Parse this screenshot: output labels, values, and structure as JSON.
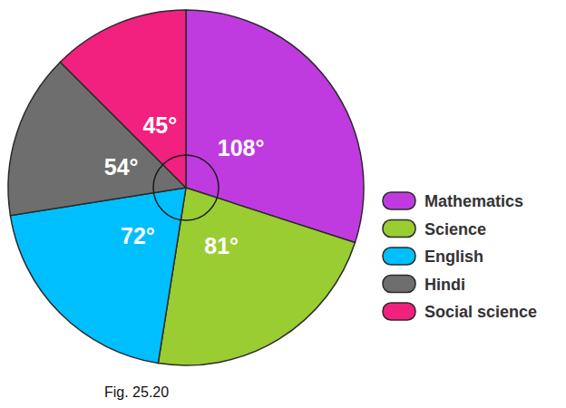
{
  "chart_data": {
    "type": "pie",
    "title": "Fig. 25.20",
    "categories": [
      "Mathematics",
      "Science",
      "English",
      "Hindi",
      "Social science"
    ],
    "values": [
      108,
      81,
      72,
      54,
      45
    ],
    "value_labels": [
      "108°",
      "81°",
      "72°",
      "54°",
      "45°"
    ],
    "colors": [
      "#bf3be0",
      "#9acd32",
      "#00bfff",
      "#6e6e6e",
      "#f2207e"
    ],
    "data_labels": true,
    "legend": "right"
  }
}
